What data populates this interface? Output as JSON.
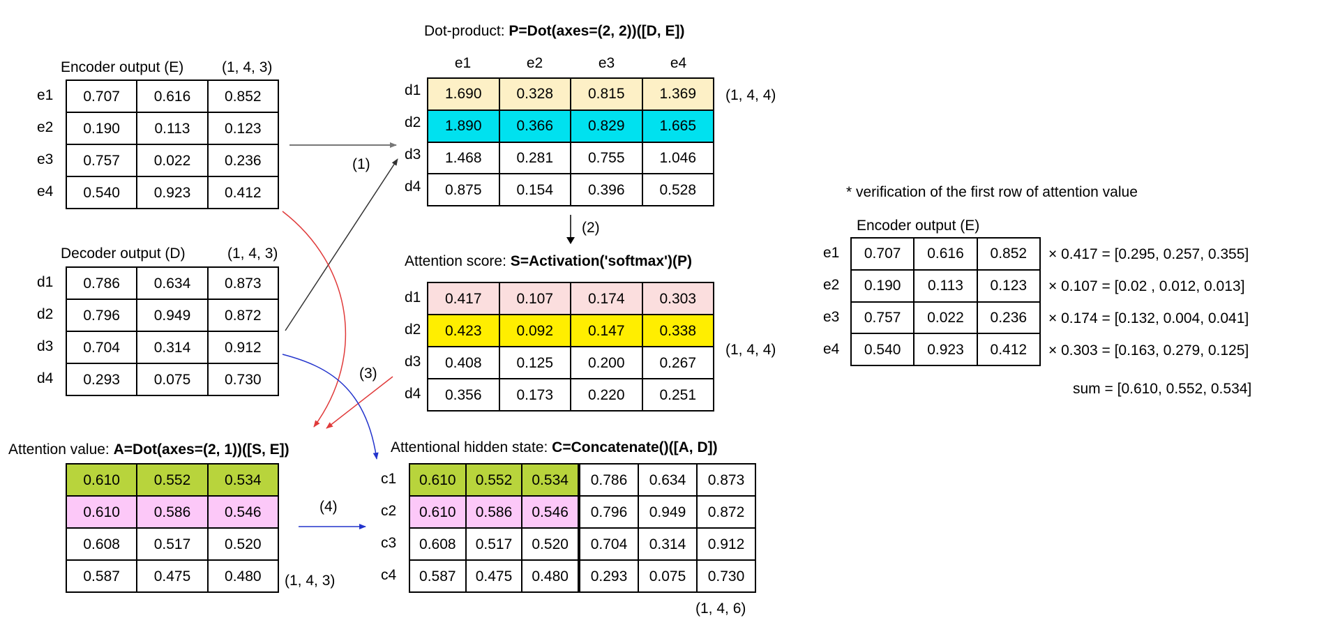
{
  "encoder": {
    "title": "Encoder output (E)",
    "shape": "(1, 4, 3)",
    "row_labels": [
      "e1",
      "e2",
      "e3",
      "e4"
    ],
    "rows": [
      [
        "0.707",
        "0.616",
        "0.852"
      ],
      [
        "0.190",
        "0.113",
        "0.123"
      ],
      [
        "0.757",
        "0.022",
        "0.236"
      ],
      [
        "0.540",
        "0.923",
        "0.412"
      ]
    ]
  },
  "decoder": {
    "title": "Decoder output (D)",
    "shape": "(1, 4, 3)",
    "row_labels": [
      "d1",
      "d2",
      "d3",
      "d4"
    ],
    "rows": [
      [
        "0.786",
        "0.634",
        "0.873"
      ],
      [
        "0.796",
        "0.949",
        "0.872"
      ],
      [
        "0.704",
        "0.314",
        "0.912"
      ],
      [
        "0.293",
        "0.075",
        "0.730"
      ]
    ]
  },
  "dot_product": {
    "title_prefix": "Dot-product: ",
    "title_formula": "P=Dot(axes=(2, 2))([D, E])",
    "shape": "(1, 4, 4)",
    "col_labels": [
      "e1",
      "e2",
      "e3",
      "e4"
    ],
    "row_labels": [
      "d1",
      "d2",
      "d3",
      "d4"
    ],
    "rows": [
      [
        "1.690",
        "0.328",
        "0.815",
        "1.369"
      ],
      [
        "1.890",
        "0.366",
        "0.829",
        "1.665"
      ],
      [
        "1.468",
        "0.281",
        "0.755",
        "1.046"
      ],
      [
        "0.875",
        "0.154",
        "0.396",
        "0.528"
      ]
    ],
    "row_colors": [
      "#fdf0c6",
      "#00e1ef",
      "#ffffff",
      "#ffffff"
    ]
  },
  "attention_score": {
    "title_prefix": "Attention score: ",
    "title_formula": "S=Activation('softmax')(P)",
    "shape": "(1, 4, 4)",
    "row_labels": [
      "d1",
      "d2",
      "d3",
      "d4"
    ],
    "rows": [
      [
        "0.417",
        "0.107",
        "0.174",
        "0.303"
      ],
      [
        "0.423",
        "0.092",
        "0.147",
        "0.338"
      ],
      [
        "0.408",
        "0.125",
        "0.200",
        "0.267"
      ],
      [
        "0.356",
        "0.173",
        "0.220",
        "0.251"
      ]
    ],
    "row_colors": [
      "#fbdede",
      "#ffee00",
      "#ffffff",
      "#ffffff"
    ]
  },
  "attention_value": {
    "title_prefix": "Attention value: ",
    "title_formula": "A=Dot(axes=(2, 1))([S, E])",
    "shape": "(1, 4, 3)",
    "rows": [
      [
        "0.610",
        "0.552",
        "0.534"
      ],
      [
        "0.610",
        "0.586",
        "0.546"
      ],
      [
        "0.608",
        "0.517",
        "0.520"
      ],
      [
        "0.587",
        "0.475",
        "0.480"
      ]
    ],
    "row_colors": [
      "#b8d43c",
      "#fcc8f8",
      "#ffffff",
      "#ffffff"
    ]
  },
  "attentional_hidden": {
    "title_prefix": "Attentional hidden state: ",
    "title_formula": "C=Concatenate()([A, D])",
    "shape": "(1, 4, 6)",
    "row_labels": [
      "c1",
      "c2",
      "c3",
      "c4"
    ],
    "rows": [
      [
        "0.610",
        "0.552",
        "0.534",
        "0.786",
        "0.634",
        "0.873"
      ],
      [
        "0.610",
        "0.586",
        "0.546",
        "0.796",
        "0.949",
        "0.872"
      ],
      [
        "0.608",
        "0.517",
        "0.520",
        "0.704",
        "0.314",
        "0.912"
      ],
      [
        "0.587",
        "0.475",
        "0.480",
        "0.293",
        "0.075",
        "0.730"
      ]
    ],
    "row_colors": [
      "#b8d43c",
      "#fcc8f8",
      "#ffffff",
      "#ffffff"
    ]
  },
  "steps": [
    "(1)",
    "(2)",
    "(3)",
    "(4)"
  ],
  "verification": {
    "note": "* verification of the first row of attention value",
    "title": "Encoder output (E)",
    "row_labels": [
      "e1",
      "e2",
      "e3",
      "e4"
    ],
    "rows": [
      [
        "0.707",
        "0.616",
        "0.852"
      ],
      [
        "0.190",
        "0.113",
        "0.123"
      ],
      [
        "0.757",
        "0.022",
        "0.236"
      ],
      [
        "0.540",
        "0.923",
        "0.412"
      ]
    ],
    "products": [
      "× 0.417 = [0.295, 0.257, 0.355]",
      "× 0.107 = [0.02 , 0.012, 0.013]",
      "× 0.174 = [0.132, 0.004, 0.041]",
      "× 0.303 = [0.163, 0.279, 0.125]"
    ],
    "sum": "sum = [0.610, 0.552, 0.534]"
  }
}
